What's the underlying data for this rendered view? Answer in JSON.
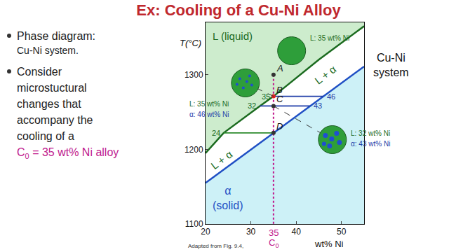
{
  "title": "Ex: Cooling of a Cu-Ni Alloy",
  "bullets": [
    {
      "lines": [
        "Phase diagram:",
        "Cu-Ni system."
      ]
    },
    {
      "lines": [
        "Consider",
        "microstuctural",
        "changes that",
        "accompany the",
        "cooling of a"
      ],
      "highlight": {
        "symbol": "C",
        "subscript": "0",
        "text": " = 35 wt% Ni alloy",
        "color": "#c0188c"
      }
    }
  ],
  "source": "Adapted from Fig. 9.4,",
  "chart_data": {
    "type": "line",
    "xlabel": "wt% Ni",
    "ylabel": "T(°C)",
    "xlim": [
      20,
      55
    ],
    "ylim": [
      1100,
      1370
    ],
    "xticks": [
      20,
      30,
      40,
      50
    ],
    "yticks": [
      1100,
      1200,
      1300
    ],
    "grid": false,
    "series": [
      {
        "color": "#1b6b1f",
        "x": [
          20,
          24,
          32,
          35,
          45,
          55
        ],
        "values": [
          1195,
          1222,
          1258,
          1271,
          1320,
          1365
        ]
      },
      {
        "color": "#1f4fc4",
        "x": [
          20,
          35,
          43,
          46,
          55
        ],
        "values": [
          1155,
          1222,
          1258,
          1271,
          1311
        ]
      }
    ],
    "system_label": [
      "Cu-Ni",
      "system"
    ],
    "composition": {
      "value": 35,
      "symbol": "C",
      "subscript": "0",
      "color": "#c0188c"
    },
    "regions": [
      {
        "text": [
          "L (liquid)"
        ],
        "x": 26,
        "y": 1352,
        "color": "#1b6b1f"
      },
      {
        "text": [
          "L + α"
        ],
        "x": 46.5,
        "y": 1300,
        "color": "#1b6b1f"
      },
      {
        "text": [
          "L + α"
        ],
        "x": 23.5,
        "y": 1186,
        "color": "#1b6b1f"
      },
      {
        "text": [
          "α",
          "(solid)"
        ],
        "x": 25,
        "y": 1135,
        "color": "#1f4fc4"
      }
    ],
    "points": [
      {
        "label": "A",
        "x": 35,
        "y": 1300,
        "color": "#333333"
      },
      {
        "label": "B",
        "x": 35,
        "y": 1271,
        "color": "#e02020"
      },
      {
        "label": "C",
        "x": 35,
        "y": 1258,
        "color": "#333333"
      },
      {
        "label": "D",
        "x": 35,
        "y": 1222,
        "color": "#333333"
      }
    ],
    "tie_lines": [
      {
        "y": 1271,
        "color": "#1f3ca8",
        "ends": [
          {
            "x": 35,
            "printed": true,
            "color": "#1b6b1f"
          },
          {
            "x": 46,
            "printed": true,
            "color": "#1f3ca8"
          }
        ]
      },
      {
        "y": 1258,
        "color": "#1f3ca8",
        "ends": [
          {
            "x": 32,
            "printed": true,
            "color": "#1b6b1f"
          },
          {
            "x": 43,
            "printed": true,
            "color": "#1f3ca8"
          }
        ]
      },
      {
        "y": 1222,
        "color": "#2e8b2e",
        "ends": [
          {
            "x": 24,
            "printed": true,
            "color": "#1b6b1f"
          },
          {
            "x": 35,
            "printed": false,
            "color": "#2e8b2e"
          }
        ]
      }
    ],
    "microstructures": [
      {
        "x": 39,
        "y": 1332,
        "phases": [
          {
            "text": "L: 35 wt% Ni",
            "color": "#1b6b1f"
          }
        ]
      },
      {
        "x": 28.8,
        "y": 1289,
        "point": "B",
        "phases": [
          {
            "text": "L: 35 wt% Ni",
            "color": "#1b6b1f"
          },
          {
            "text": "α: 46 wt% Ni",
            "color": "#1f3ca8"
          }
        ]
      },
      {
        "x": 48,
        "y": 1213,
        "point": "C",
        "phases": [
          {
            "text": "L: 32 wt% Ni",
            "color": "#1b6b1f"
          },
          {
            "text": "α: 43 wt% Ni",
            "color": "#1f3ca8"
          }
        ]
      }
    ]
  }
}
